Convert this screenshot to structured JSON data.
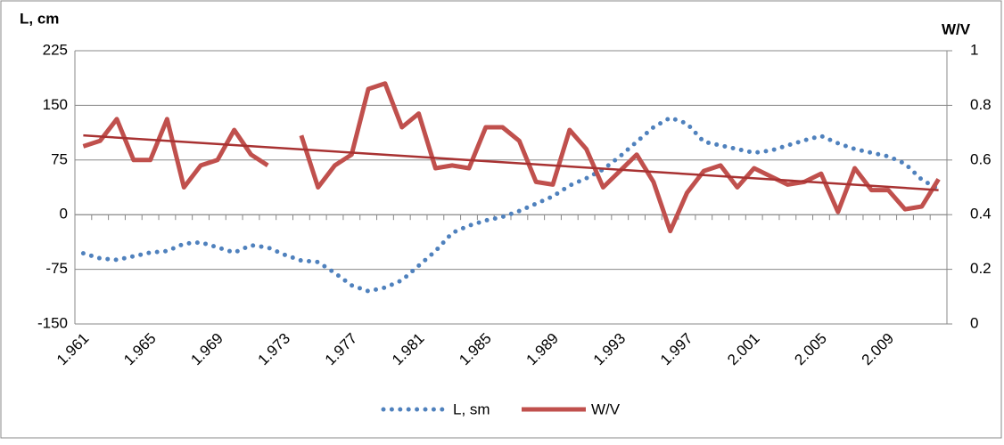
{
  "chart_data": {
    "type": "line",
    "y_label": "L, cm",
    "y2_label": "W/V",
    "categories": [
      "1.961",
      null,
      null,
      null,
      "1.965",
      null,
      null,
      null,
      "1.969",
      null,
      null,
      null,
      "1.973",
      null,
      null,
      null,
      "1.977",
      null,
      null,
      null,
      "1.981",
      null,
      null,
      null,
      "1.985",
      null,
      null,
      null,
      "1.989",
      null,
      null,
      null,
      "1.993",
      null,
      null,
      null,
      "1.997",
      null,
      null,
      null,
      "2.001",
      null,
      null,
      null,
      "2.005",
      null,
      null,
      null,
      "2.009",
      null,
      null,
      null
    ],
    "series": [
      {
        "name": "L, sm",
        "color": "#4f81bd",
        "style": "dotted",
        "axis": "y",
        "values": [
          -53,
          -60,
          -62,
          -57,
          -52,
          -50,
          -40,
          -38,
          -45,
          -52,
          -42,
          -45,
          -55,
          -63,
          -65,
          -80,
          -97,
          -105,
          -100,
          -90,
          -70,
          -50,
          -25,
          -15,
          -8,
          -3,
          5,
          15,
          25,
          40,
          50,
          62,
          80,
          100,
          120,
          133,
          125,
          100,
          95,
          90,
          85,
          88,
          95,
          102,
          108,
          98,
          90,
          85,
          80,
          70,
          48,
          35
        ]
      },
      {
        "name": "W/V",
        "color": "#c0504d",
        "style": "solid",
        "axis": "y2",
        "values": [
          0.65,
          0.67,
          0.75,
          0.6,
          0.6,
          0.75,
          0.5,
          0.58,
          0.6,
          0.71,
          0.62,
          0.58,
          null,
          0.69,
          0.5,
          0.58,
          0.62,
          0.86,
          0.88,
          0.72,
          0.77,
          0.57,
          0.58,
          0.57,
          0.72,
          0.72,
          0.67,
          0.52,
          0.51,
          0.71,
          0.64,
          0.5,
          0.56,
          0.62,
          0.52,
          0.34,
          0.48,
          0.56,
          0.58,
          0.5,
          0.57,
          0.54,
          0.51,
          0.52,
          0.55,
          0.41,
          0.57,
          0.49,
          0.49,
          0.42,
          0.43,
          0.53
        ]
      }
    ],
    "trendline": {
      "color": "#a83232",
      "values": [
        0.69,
        0.49
      ]
    },
    "ylim": [
      -150,
      225
    ],
    "yticks": [
      -150,
      -75,
      0,
      75,
      150,
      225
    ],
    "y2lim": [
      0,
      1
    ],
    "y2ticks": [
      0,
      0.2,
      0.4,
      0.6,
      0.8,
      1
    ],
    "grid": true,
    "legend": "bottom"
  }
}
